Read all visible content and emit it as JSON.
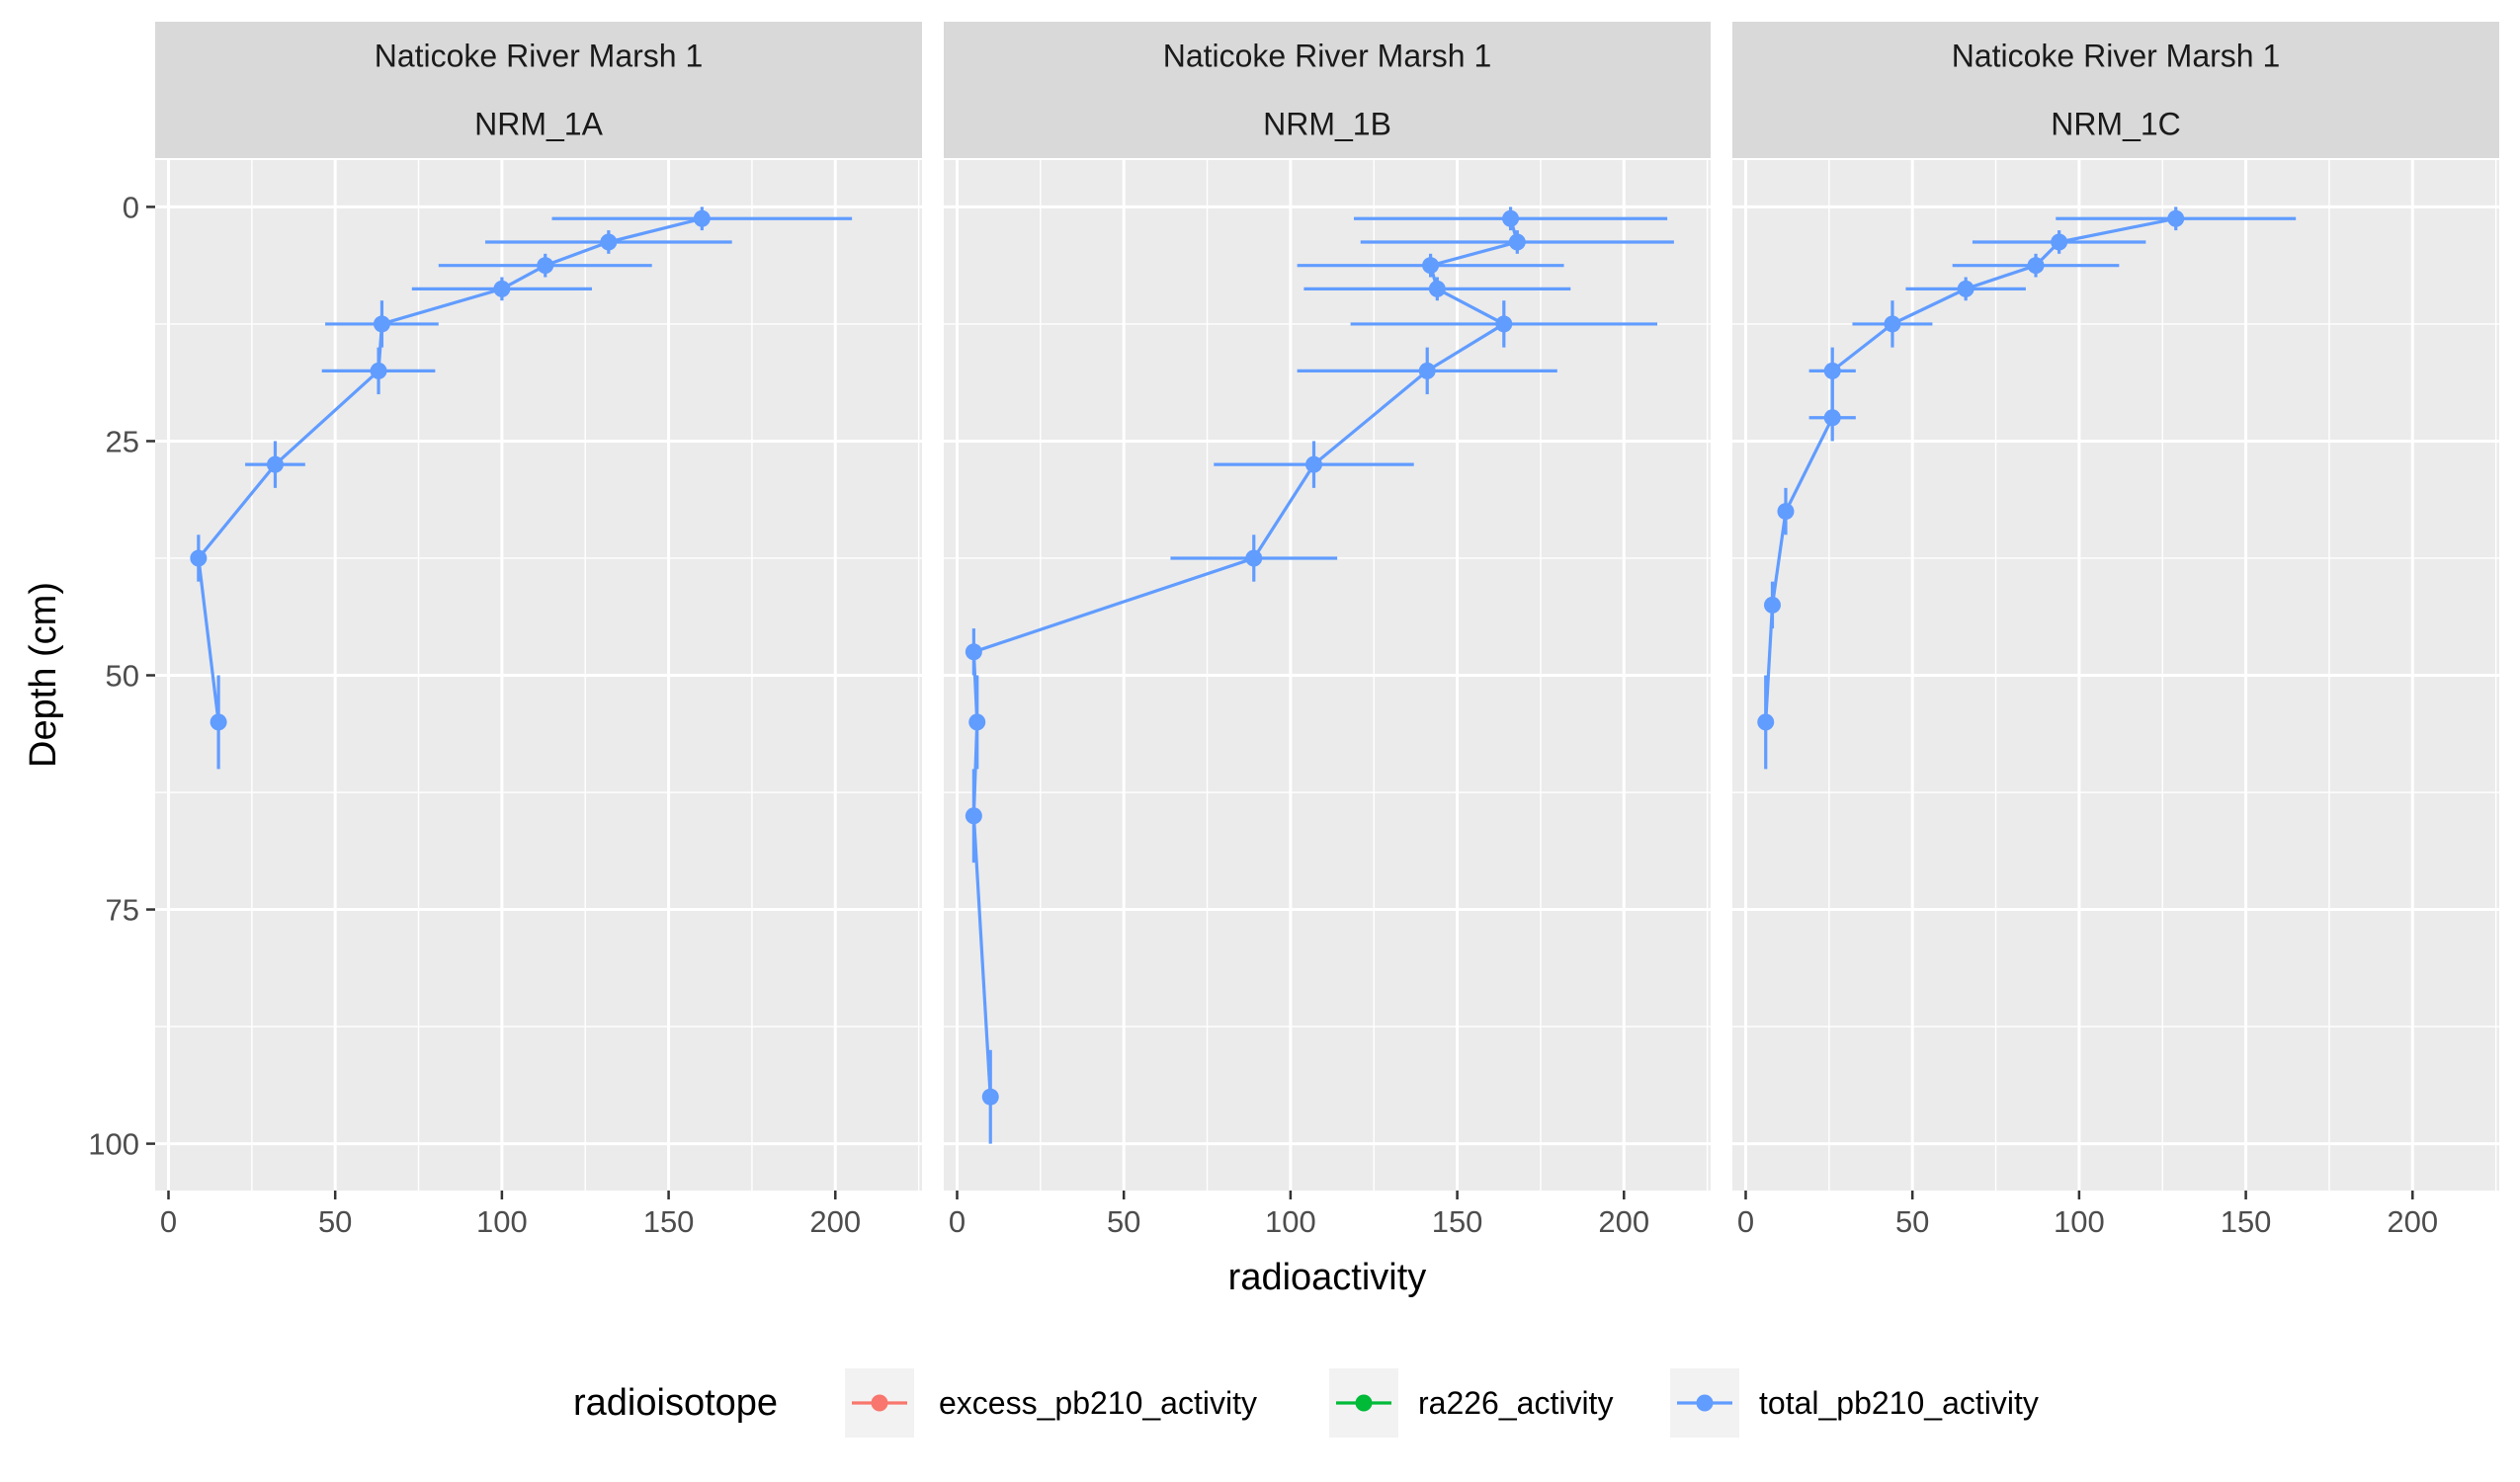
{
  "chart_data": {
    "type": "line",
    "facet_row_label": "Naticoke River Marsh 1",
    "xlabel": "radioactivity",
    "ylabel": "Depth (cm)",
    "xlim": [
      -4,
      226
    ],
    "ylim": [
      105,
      -5
    ],
    "y_reversed": true,
    "x_ticks": [
      0,
      50,
      100,
      150,
      200
    ],
    "y_ticks": [
      0,
      25,
      50,
      75,
      100
    ],
    "grid": true,
    "legend": {
      "title": "radioisotope",
      "position": "bottom",
      "entries": [
        {
          "name": "excess_pb210_activity",
          "color": "#F8766D"
        },
        {
          "name": "ra226_activity",
          "color": "#00BA38"
        },
        {
          "name": "total_pb210_activity",
          "color": "#619CFF"
        }
      ]
    },
    "series_color": "#619CFF",
    "panels": [
      {
        "site": "Naticoke River Marsh 1",
        "core": "NRM_1A",
        "points": [
          {
            "x": 160,
            "y": 1.25,
            "xerr": 45,
            "ylo": 0,
            "yhi": 2.5
          },
          {
            "x": 132,
            "y": 3.75,
            "xerr": 37,
            "ylo": 2.5,
            "yhi": 5
          },
          {
            "x": 113,
            "y": 6.25,
            "xerr": 32,
            "ylo": 5,
            "yhi": 7.5
          },
          {
            "x": 100,
            "y": 8.75,
            "xerr": 27,
            "ylo": 7.5,
            "yhi": 10
          },
          {
            "x": 64,
            "y": 12.5,
            "xerr": 17,
            "ylo": 10,
            "yhi": 15
          },
          {
            "x": 63,
            "y": 17.5,
            "xerr": 17,
            "ylo": 15,
            "yhi": 20
          },
          {
            "x": 32,
            "y": 27.5,
            "xerr": 9,
            "ylo": 25,
            "yhi": 30
          },
          {
            "x": 9,
            "y": 37.5,
            "xerr": 2,
            "ylo": 35,
            "yhi": 40
          },
          {
            "x": 15,
            "y": 55,
            "xerr": 2,
            "ylo": 50,
            "yhi": 60
          }
        ]
      },
      {
        "site": "Naticoke River Marsh 1",
        "core": "NRM_1B",
        "points": [
          {
            "x": 166,
            "y": 1.25,
            "xerr": 47,
            "ylo": 0,
            "yhi": 2.5
          },
          {
            "x": 168,
            "y": 3.75,
            "xerr": 47,
            "ylo": 2.5,
            "yhi": 5
          },
          {
            "x": 142,
            "y": 6.25,
            "xerr": 40,
            "ylo": 5,
            "yhi": 7.5
          },
          {
            "x": 144,
            "y": 8.75,
            "xerr": 40,
            "ylo": 7.5,
            "yhi": 10
          },
          {
            "x": 164,
            "y": 12.5,
            "xerr": 46,
            "ylo": 10,
            "yhi": 15
          },
          {
            "x": 141,
            "y": 17.5,
            "xerr": 39,
            "ylo": 15,
            "yhi": 20
          },
          {
            "x": 107,
            "y": 27.5,
            "xerr": 30,
            "ylo": 25,
            "yhi": 30
          },
          {
            "x": 89,
            "y": 37.5,
            "xerr": 25,
            "ylo": 35,
            "yhi": 40
          },
          {
            "x": 5,
            "y": 47.5,
            "xerr": 1,
            "ylo": 45,
            "yhi": 50
          },
          {
            "x": 6,
            "y": 55,
            "xerr": 1,
            "ylo": 50,
            "yhi": 60
          },
          {
            "x": 5,
            "y": 65,
            "xerr": 1,
            "ylo": 60,
            "yhi": 70
          },
          {
            "x": 10,
            "y": 95,
            "xerr": 1,
            "ylo": 90,
            "yhi": 100
          }
        ]
      },
      {
        "site": "Naticoke River Marsh 1",
        "core": "NRM_1C",
        "points": [
          {
            "x": 129,
            "y": 1.25,
            "xerr": 36,
            "ylo": 0,
            "yhi": 2.5
          },
          {
            "x": 94,
            "y": 3.75,
            "xerr": 26,
            "ylo": 2.5,
            "yhi": 5
          },
          {
            "x": 87,
            "y": 6.25,
            "xerr": 25,
            "ylo": 5,
            "yhi": 7.5
          },
          {
            "x": 66,
            "y": 8.75,
            "xerr": 18,
            "ylo": 7.5,
            "yhi": 10
          },
          {
            "x": 44,
            "y": 12.5,
            "xerr": 12,
            "ylo": 10,
            "yhi": 15
          },
          {
            "x": 26,
            "y": 17.5,
            "xerr": 7,
            "ylo": 15,
            "yhi": 20
          },
          {
            "x": 26,
            "y": 22.5,
            "xerr": 7,
            "ylo": 20,
            "yhi": 25
          },
          {
            "x": 12,
            "y": 32.5,
            "xerr": 2,
            "ylo": 30,
            "yhi": 35
          },
          {
            "x": 8,
            "y": 42.5,
            "xerr": 1,
            "ylo": 40,
            "yhi": 45
          },
          {
            "x": 6,
            "y": 55,
            "xerr": 1,
            "ylo": 50,
            "yhi": 60
          }
        ]
      }
    ]
  }
}
